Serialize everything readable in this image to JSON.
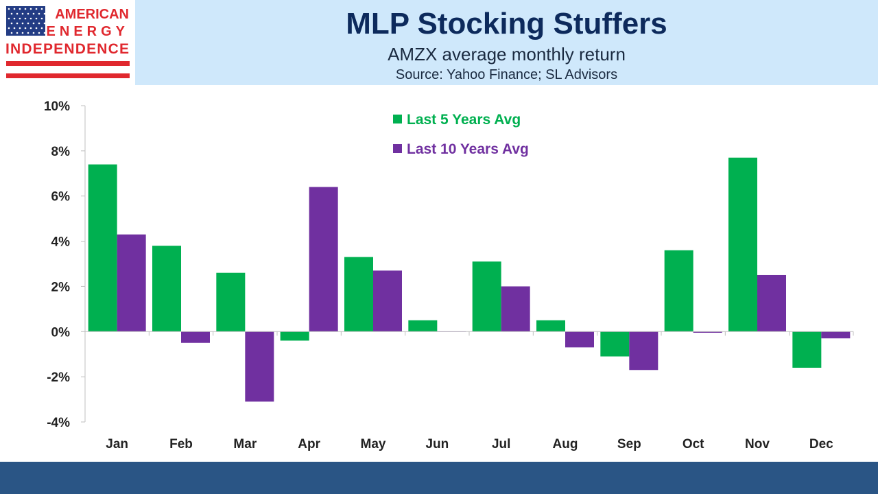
{
  "logo": {
    "line1": "AMERICAN",
    "line2": "ENERGY",
    "line3": "INDEPENDENCE",
    "colors": {
      "red": "#e0282e",
      "blue": "#233c84"
    }
  },
  "header": {
    "title": "MLP Stocking Stuffers",
    "subtitle": "AMZX average monthly return",
    "source": "Source: Yahoo Finance; SL Advisors"
  },
  "chart_data": {
    "type": "bar",
    "title": "MLP Stocking Stuffers",
    "subtitle": "AMZX average monthly return",
    "categories": [
      "Jan",
      "Feb",
      "Mar",
      "Apr",
      "May",
      "Jun",
      "Jul",
      "Aug",
      "Sep",
      "Oct",
      "Nov",
      "Dec"
    ],
    "series": [
      {
        "name": "Last 5 Years Avg",
        "color": "#00b050",
        "values": [
          7.4,
          3.8,
          2.6,
          -0.4,
          3.3,
          0.5,
          3.1,
          0.5,
          -1.1,
          3.6,
          7.7,
          -1.6
        ]
      },
      {
        "name": "Last 10 Years Avg",
        "color": "#7030a0",
        "values": [
          4.3,
          -0.5,
          -3.1,
          6.4,
          2.7,
          0.0,
          2.0,
          -0.7,
          -1.7,
          -0.05,
          2.5,
          -0.3
        ]
      }
    ],
    "ylim": [
      -4,
      10
    ],
    "yticks": [
      -4,
      -2,
      0,
      2,
      4,
      6,
      8,
      10
    ],
    "ytick_labels": [
      "-4%",
      "-2%",
      "0%",
      "2%",
      "4%",
      "6%",
      "8%",
      "10%"
    ],
    "xlabel": "",
    "ylabel": "",
    "legend": "top-center",
    "grid": false
  }
}
